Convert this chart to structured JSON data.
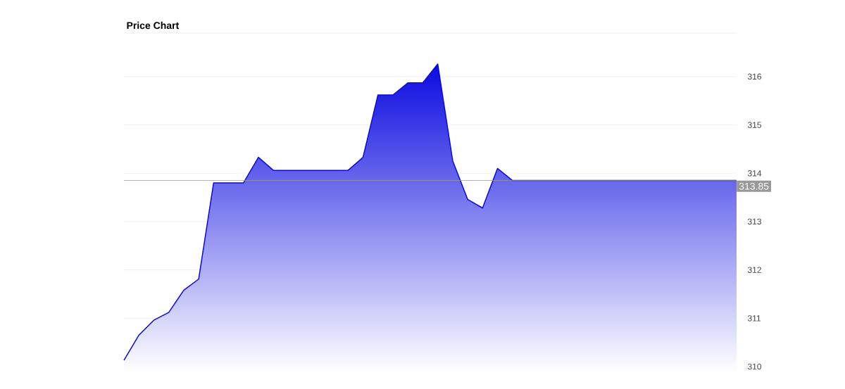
{
  "chart_data": {
    "type": "area",
    "title": "Price Chart",
    "categories": [
      null,
      null,
      null,
      null,
      null,
      null,
      null,
      null,
      null,
      null,
      null,
      null,
      null,
      null,
      null,
      null,
      null,
      null,
      null,
      null,
      null,
      null,
      null,
      null,
      null,
      null,
      null,
      null,
      null,
      null,
      null,
      null,
      null,
      null,
      null,
      null,
      null,
      null,
      null,
      null,
      null,
      null
    ],
    "series": [
      {
        "color": "#0a0ae0",
        "values": [
          310.13,
          310.65,
          310.96,
          311.12,
          311.58,
          311.81,
          313.8,
          313.8,
          313.8,
          314.33,
          314.06,
          314.06,
          314.06,
          314.06,
          314.06,
          314.06,
          314.33,
          315.62,
          315.62,
          315.87,
          315.87,
          316.26,
          314.26,
          313.46,
          313.28,
          314.1,
          313.85,
          313.85,
          313.85,
          313.85,
          313.85,
          313.85,
          313.85,
          313.85,
          313.85,
          313.85,
          313.85,
          313.85,
          313.85,
          313.85,
          313.85,
          313.85
        ]
      }
    ],
    "ylim": [
      309.9,
      316.9
    ],
    "yticks": [
      310,
      311,
      312,
      313,
      314,
      315,
      316
    ],
    "grid": "y",
    "marker": "none",
    "line_style": "solid",
    "ref_lines": [
      {
        "axis": "y",
        "value": 313.85,
        "label": "313.85",
        "color": "#999999"
      }
    ]
  }
}
